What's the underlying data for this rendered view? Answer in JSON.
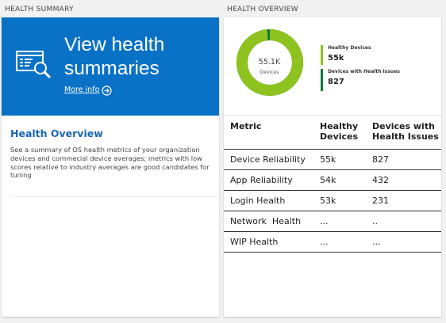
{
  "sections": {
    "left_label": "HEALTH SUMMARY",
    "right_label": "HEALTH OVERVIEW"
  },
  "hero": {
    "title": "View health summaries",
    "more_info": "More info",
    "icon": "dashboard-search-icon",
    "background": "#0a72c6"
  },
  "overview": {
    "title": "Health Overview",
    "description": "See a summary of OS health metrics of your organization devices and commecial device averages; metrics with low scores relative to industry averages are good candidates for tuning"
  },
  "donut": {
    "total": "55.1K",
    "total_label": "Devices",
    "healthy_fraction": 0.985,
    "healthy_color": "#8dc21f",
    "issues_color": "#0d7a3a"
  },
  "legend": [
    {
      "label": "Healthy Devices",
      "value": "55k",
      "color": "#8dc21f"
    },
    {
      "label": "Devices with Health Issues",
      "value": "827",
      "color": "#0d7a3a"
    }
  ],
  "table": {
    "headers": [
      "Metric",
      "Healthy Devices",
      "Devices with Health Issues"
    ],
    "rows": [
      [
        "Device Reliability",
        "55k",
        "827"
      ],
      [
        "App Reliability",
        "54k",
        "432"
      ],
      [
        "Login Health",
        "53k",
        "231"
      ],
      [
        "Network  Health",
        "...",
        ".."
      ],
      [
        "WIP Health",
        "...",
        "..."
      ]
    ]
  }
}
